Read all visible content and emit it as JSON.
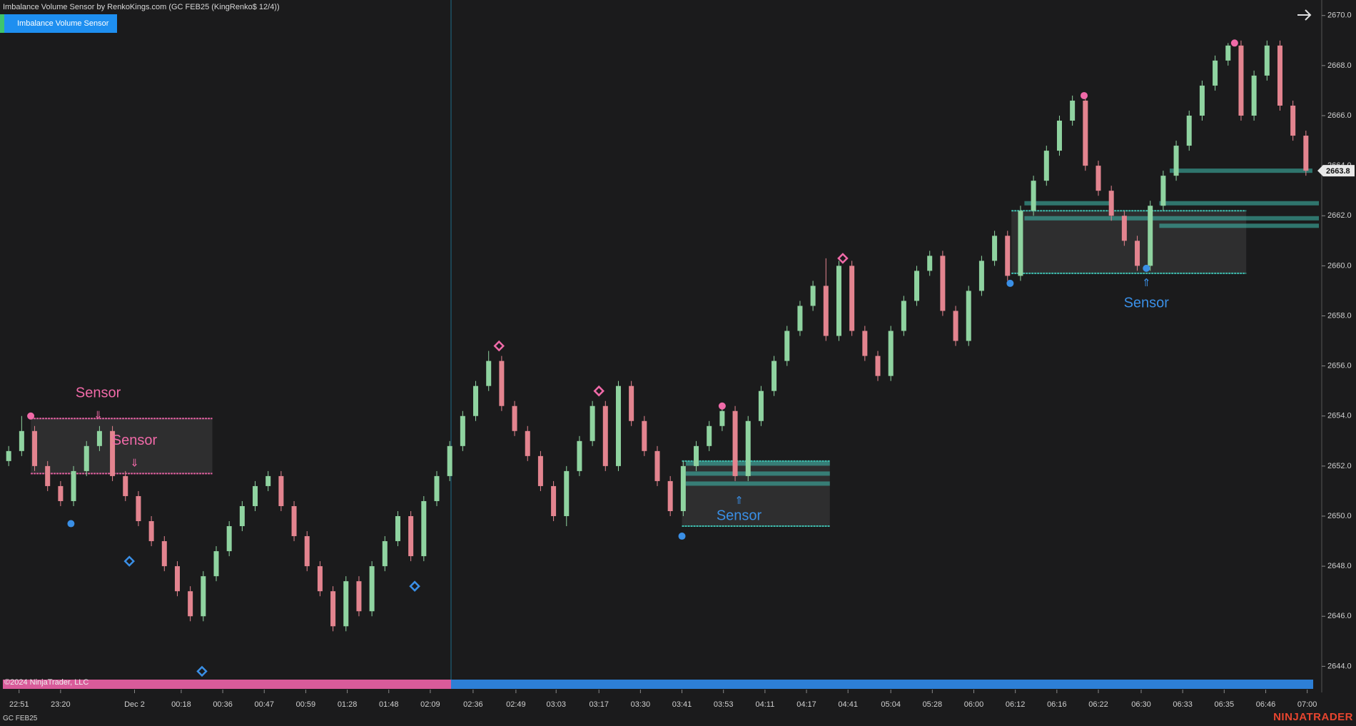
{
  "window": {
    "title": "Imbalance Volume Sensor by RenkoKings.com (GC FEB25 (KingRenko$ 12/4))",
    "indicator_button": "Imbalance Volume Sensor",
    "copyright": "©2024 NinjaTrader, LLC",
    "instrument": "GC FEB25",
    "brand": "NINJATRADER"
  },
  "chart_data": {
    "type": "candlestick",
    "up_color": "#8fd3a0",
    "down_color": "#e3848f",
    "x": [
      0,
      1,
      2,
      3,
      4,
      5,
      6,
      7,
      8,
      9,
      10,
      11,
      12,
      13,
      14,
      15,
      16,
      17,
      18,
      19,
      20,
      21,
      22,
      23,
      24,
      25,
      26,
      27,
      28,
      29,
      30,
      31,
      32,
      33,
      34,
      35,
      36,
      37,
      38,
      39,
      40,
      41,
      42,
      43,
      44,
      45,
      46,
      47,
      48,
      49,
      50,
      51,
      52,
      53,
      54,
      55,
      56,
      57,
      58,
      59,
      60,
      61,
      62,
      63,
      64,
      65,
      66,
      67,
      68,
      69,
      70,
      71,
      72,
      73,
      74,
      75,
      76,
      77,
      78,
      79,
      80,
      81,
      82,
      83,
      84,
      85,
      86,
      87,
      88,
      89,
      90,
      91,
      92,
      93,
      94,
      95,
      96,
      97,
      98,
      99,
      100
    ],
    "open": [
      2652.2,
      2652.6,
      2653.4,
      2652.0,
      2651.2,
      2650.6,
      2651.8,
      2652.8,
      2653.4,
      2651.6,
      2650.8,
      2649.8,
      2649.0,
      2648.0,
      2647.0,
      2646.0,
      2647.6,
      2648.6,
      2649.6,
      2650.4,
      2651.2,
      2651.6,
      2650.4,
      2649.2,
      2648.0,
      2647.0,
      2645.6,
      2647.4,
      2646.2,
      2648.0,
      2649.0,
      2650.0,
      2648.4,
      2650.6,
      2651.6,
      2652.8,
      2654.0,
      2655.2,
      2656.2,
      2654.4,
      2653.4,
      2652.4,
      2651.2,
      2650.0,
      2651.8,
      2653.0,
      2654.4,
      2652.0,
      2655.2,
      2653.8,
      2652.6,
      2651.4,
      2650.2,
      2652.0,
      2652.8,
      2653.6,
      2654.2,
      2651.6,
      2653.8,
      2655.0,
      2656.2,
      2657.4,
      2658.4,
      2659.2,
      2657.2,
      2660.0,
      2657.4,
      2656.4,
      2655.6,
      2657.4,
      2658.6,
      2659.8,
      2660.4,
      2658.2,
      2657.0,
      2659.0,
      2660.2,
      2661.2,
      2659.6,
      2662.2,
      2663.4,
      2664.6,
      2665.8,
      2666.6,
      2664.0,
      2663.0,
      2662.0,
      2661.0,
      2660.0,
      2662.4,
      2663.6,
      2664.8,
      2666.0,
      2667.2,
      2668.2,
      2668.8,
      2666.0,
      2667.6,
      2668.8,
      2666.4,
      2665.2
    ],
    "high": [
      2652.8,
      2654.0,
      2653.6,
      2652.2,
      2651.4,
      2652.0,
      2653.0,
      2653.6,
      2653.6,
      2651.8,
      2651.0,
      2650.0,
      2649.2,
      2648.2,
      2647.2,
      2647.8,
      2648.8,
      2649.8,
      2650.6,
      2651.4,
      2651.8,
      2651.8,
      2650.6,
      2649.4,
      2648.2,
      2647.2,
      2647.6,
      2647.6,
      2648.2,
      2649.2,
      2650.2,
      2650.2,
      2650.8,
      2651.8,
      2653.0,
      2654.2,
      2655.4,
      2656.6,
      2656.4,
      2654.6,
      2653.6,
      2652.6,
      2651.4,
      2652.0,
      2653.2,
      2654.6,
      2654.6,
      2655.4,
      2655.4,
      2654.0,
      2652.8,
      2651.6,
      2652.2,
      2653.0,
      2653.8,
      2654.4,
      2654.4,
      2654.0,
      2655.2,
      2656.4,
      2657.6,
      2658.6,
      2659.4,
      2660.3,
      2660.2,
      2660.2,
      2657.6,
      2656.6,
      2657.6,
      2658.8,
      2660.0,
      2660.6,
      2660.6,
      2658.4,
      2659.2,
      2660.4,
      2661.4,
      2661.4,
      2662.4,
      2663.6,
      2664.8,
      2666.0,
      2666.8,
      2666.8,
      2664.2,
      2663.2,
      2662.2,
      2661.2,
      2662.6,
      2663.8,
      2665.0,
      2666.2,
      2667.4,
      2668.4,
      2668.9,
      2669.0,
      2667.8,
      2669.0,
      2669.0,
      2666.6,
      2665.4
    ],
    "low": [
      2652.0,
      2652.4,
      2651.8,
      2651.0,
      2650.4,
      2650.4,
      2651.6,
      2652.6,
      2651.4,
      2650.6,
      2649.6,
      2648.8,
      2647.8,
      2646.8,
      2645.8,
      2645.8,
      2647.4,
      2648.4,
      2649.4,
      2650.2,
      2651.0,
      2650.2,
      2649.0,
      2647.8,
      2646.8,
      2645.4,
      2645.4,
      2646.0,
      2646.0,
      2647.8,
      2648.8,
      2648.2,
      2648.2,
      2650.4,
      2651.4,
      2652.6,
      2653.8,
      2655.0,
      2654.2,
      2653.2,
      2652.2,
      2651.0,
      2649.8,
      2649.6,
      2651.6,
      2652.8,
      2651.8,
      2651.8,
      2653.6,
      2652.4,
      2651.2,
      2650.0,
      2650.0,
      2651.8,
      2652.6,
      2653.4,
      2651.4,
      2651.4,
      2653.6,
      2654.8,
      2656.0,
      2657.2,
      2658.2,
      2657.0,
      2657.0,
      2657.2,
      2656.2,
      2655.4,
      2655.4,
      2657.2,
      2658.4,
      2659.6,
      2658.0,
      2656.8,
      2656.8,
      2658.8,
      2660.0,
      2659.4,
      2659.4,
      2662.0,
      2663.2,
      2664.4,
      2665.6,
      2663.8,
      2662.8,
      2661.8,
      2660.8,
      2659.8,
      2659.8,
      2662.2,
      2663.4,
      2664.6,
      2665.8,
      2667.0,
      2668.0,
      2665.8,
      2665.8,
      2667.4,
      2666.2,
      2665.0,
      2663.6
    ],
    "close": [
      2652.6,
      2653.4,
      2652.0,
      2651.2,
      2650.6,
      2651.8,
      2652.8,
      2653.4,
      2651.6,
      2650.8,
      2649.8,
      2649.0,
      2648.0,
      2647.0,
      2646.0,
      2647.6,
      2648.6,
      2649.6,
      2650.4,
      2651.2,
      2651.6,
      2650.4,
      2649.2,
      2648.0,
      2647.0,
      2645.6,
      2647.4,
      2646.2,
      2648.0,
      2649.0,
      2650.0,
      2648.4,
      2650.6,
      2651.6,
      2652.8,
      2654.0,
      2655.2,
      2656.2,
      2654.4,
      2653.4,
      2652.4,
      2651.2,
      2650.0,
      2651.8,
      2653.0,
      2654.4,
      2652.0,
      2655.2,
      2653.8,
      2652.6,
      2651.4,
      2650.2,
      2652.0,
      2652.8,
      2653.6,
      2654.2,
      2651.6,
      2653.8,
      2655.0,
      2656.2,
      2657.4,
      2658.4,
      2659.2,
      2657.2,
      2660.0,
      2657.4,
      2656.4,
      2655.6,
      2657.4,
      2658.6,
      2659.8,
      2660.4,
      2658.2,
      2657.0,
      2659.0,
      2660.2,
      2661.2,
      2659.6,
      2662.2,
      2663.4,
      2664.6,
      2665.8,
      2666.6,
      2664.0,
      2663.0,
      2662.0,
      2661.0,
      2660.0,
      2662.4,
      2663.6,
      2664.8,
      2666.0,
      2667.2,
      2668.2,
      2668.8,
      2666.0,
      2667.6,
      2668.8,
      2666.4,
      2665.2,
      2663.8
    ],
    "xlim": [
      -0.67,
      101
    ],
    "xticks": [
      {
        "value": 0.8,
        "label": "22:51"
      },
      {
        "value": 4,
        "label": "23:20"
      },
      {
        "value": 9.7,
        "label": "Dec 2"
      },
      {
        "value": 13.3,
        "label": "00:18"
      },
      {
        "value": 16.5,
        "label": "00:36"
      },
      {
        "value": 19.7,
        "label": "00:47"
      },
      {
        "value": 22.9,
        "label": "00:59"
      },
      {
        "value": 26.1,
        "label": "01:28"
      },
      {
        "value": 29.3,
        "label": "01:48"
      },
      {
        "value": 32.5,
        "label": "02:09"
      },
      {
        "value": 35.8,
        "label": "02:36"
      },
      {
        "value": 39.1,
        "label": "02:49"
      },
      {
        "value": 42.2,
        "label": "03:03"
      },
      {
        "value": 45.5,
        "label": "03:17"
      },
      {
        "value": 48.7,
        "label": "03:30"
      },
      {
        "value": 51.9,
        "label": "03:41"
      },
      {
        "value": 55.1,
        "label": "03:53"
      },
      {
        "value": 58.3,
        "label": "04:11"
      },
      {
        "value": 61.5,
        "label": "04:17"
      },
      {
        "value": 64.7,
        "label": "04:41"
      },
      {
        "value": 68,
        "label": "05:04"
      },
      {
        "value": 71.2,
        "label": "05:28"
      },
      {
        "value": 74.4,
        "label": "06:00"
      },
      {
        "value": 77.6,
        "label": "06:12"
      },
      {
        "value": 80.8,
        "label": "06:16"
      },
      {
        "value": 84,
        "label": "06:22"
      },
      {
        "value": 87.3,
        "label": "06:30"
      },
      {
        "value": 90.5,
        "label": "06:33"
      },
      {
        "value": 93.7,
        "label": "06:35"
      },
      {
        "value": 96.9,
        "label": "06:46"
      },
      {
        "value": 100.1,
        "label": "07:00"
      }
    ],
    "ylim": [
      2643.07,
      2670.62
    ],
    "yticks": [
      {
        "value": 2644,
        "label": "2644.0"
      },
      {
        "value": 2646,
        "label": "2646.0"
      },
      {
        "value": 2648,
        "label": "2648.0"
      },
      {
        "value": 2650,
        "label": "2650.0"
      },
      {
        "value": 2652,
        "label": "2652.0"
      },
      {
        "value": 2654,
        "label": "2654.0"
      },
      {
        "value": 2656,
        "label": "2656.0"
      },
      {
        "value": 2658,
        "label": "2658.0"
      },
      {
        "value": 2660,
        "label": "2660.0"
      },
      {
        "value": 2662,
        "label": "2662.0"
      },
      {
        "value": 2664,
        "label": "2664.0"
      },
      {
        "value": 2666,
        "label": "2666.0"
      },
      {
        "value": 2668,
        "label": "2668.0"
      },
      {
        "value": 2670,
        "label": "2670.0"
      }
    ],
    "session_split": 34.1,
    "session_colors": [
      "#d95b9a",
      "#2d7fd6"
    ],
    "zones": [
      {
        "x": [
          1.7,
          15.7
        ],
        "y": [
          2651.7,
          2653.9
        ],
        "color": "#e0609f"
      },
      {
        "x": [
          51.9,
          63.3
        ],
        "y": [
          2649.6,
          2652.2
        ],
        "color": "#3fbfb0"
      },
      {
        "x": [
          77.3,
          95.4
        ],
        "y": [
          2659.7,
          2662.2
        ],
        "color": "#3fbfb0"
      }
    ],
    "bands": [
      {
        "x": [
          52.2,
          63.3
        ],
        "y": 2652.1,
        "color": "#3fbfb0"
      },
      {
        "x": [
          52.2,
          63.3
        ],
        "y": 2651.7,
        "color": "#3fbfb0"
      },
      {
        "x": [
          52.2,
          63.3
        ],
        "y": 2651.3,
        "color": "#3fbfb0"
      },
      {
        "x": [
          78.3,
          84.9
        ],
        "y": 2662.5,
        "color": "#3fbfb0"
      },
      {
        "x": [
          78.3,
          101
        ],
        "y": 2661.9,
        "color": "#3fbfb0"
      },
      {
        "x": [
          88.7,
          101
        ],
        "y": 2662.5,
        "color": "#3fbfb0"
      },
      {
        "x": [
          88.7,
          101
        ],
        "y": 2661.6,
        "color": "#3fbfb0"
      },
      {
        "x": [
          89.5,
          100.5
        ],
        "y": 2663.8,
        "color": "#3fbfb0"
      }
    ],
    "markers": [
      {
        "x": 1.7,
        "y": 2654.0,
        "shape": "dot",
        "color": "#f06aa8"
      },
      {
        "x": 55,
        "y": 2654.4,
        "shape": "dot",
        "color": "#f06aa8"
      },
      {
        "x": 82.9,
        "y": 2666.8,
        "shape": "dot",
        "color": "#f06aa8"
      },
      {
        "x": 94.5,
        "y": 2668.9,
        "shape": "dot",
        "color": "#f06aa8"
      },
      {
        "x": 4.8,
        "y": 2649.7,
        "shape": "dot",
        "color": "#3a8fe6"
      },
      {
        "x": 51.9,
        "y": 2649.2,
        "shape": "dot",
        "color": "#3a8fe6"
      },
      {
        "x": 77.2,
        "y": 2659.3,
        "shape": "dot",
        "color": "#3a8fe6"
      },
      {
        "x": 87.7,
        "y": 2659.9,
        "shape": "dot",
        "color": "#3a8fe6"
      },
      {
        "x": 37.8,
        "y": 2656.8,
        "shape": "diamond",
        "color": "#f06aa8"
      },
      {
        "x": 45.5,
        "y": 2655.0,
        "shape": "diamond",
        "color": "#f06aa8"
      },
      {
        "x": 64.3,
        "y": 2660.3,
        "shape": "diamond",
        "color": "#f06aa8"
      },
      {
        "x": 9.3,
        "y": 2648.2,
        "shape": "diamond",
        "color": "#3a8fe6"
      },
      {
        "x": 14.9,
        "y": 2643.8,
        "shape": "diamond",
        "color": "#3a8fe6"
      },
      {
        "x": 31.3,
        "y": 2647.2,
        "shape": "diamond",
        "color": "#3a8fe6"
      }
    ],
    "annotations": [
      {
        "text": "Sensor",
        "arrow": "⇓",
        "x": 6.9,
        "y": 2654.9,
        "arrow_y": 2654.0,
        "color": "#f06aa8"
      },
      {
        "text": "Sensor",
        "arrow": "⇓",
        "x": 9.7,
        "y": 2653.0,
        "arrow_y": 2652.1,
        "color": "#f06aa8"
      },
      {
        "text": "Sensor",
        "arrow": "⇑",
        "x": 56.3,
        "y": 2650.0,
        "arrow_y": 2650.6,
        "color": "#3a8fe6"
      },
      {
        "text": "Sensor",
        "arrow": "⇑",
        "x": 87.7,
        "y": 2658.5,
        "arrow_y": 2659.3,
        "color": "#3a8fe6"
      }
    ]
  }
}
